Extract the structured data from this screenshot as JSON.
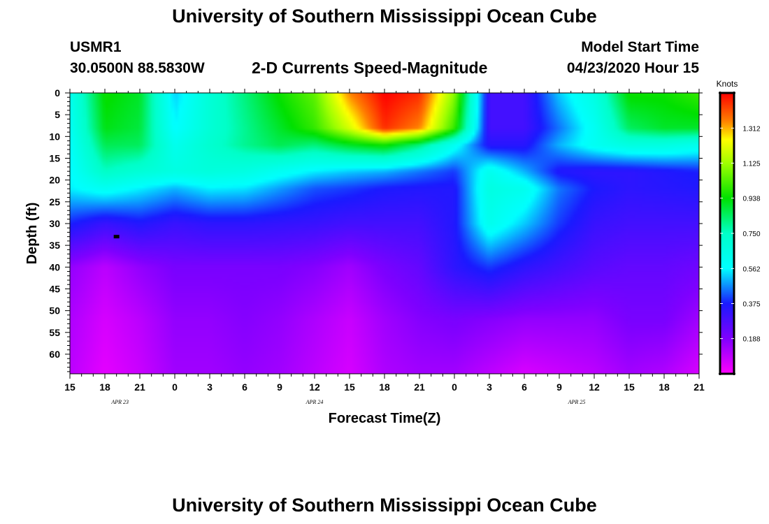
{
  "header": {
    "title": "University of Southern Mississippi Ocean Cube",
    "station": "USMR1",
    "coords": "30.0500N 88.5830W",
    "subtitle": "2-D Currents Speed-Magnitude",
    "model_start_label": "Model Start Time",
    "model_start_value": "04/23/2020 Hour 15"
  },
  "footer": {
    "title": "University of Southern Mississippi Ocean Cube"
  },
  "colors": {
    "magenta": "#ff00ff",
    "violet": "#8000ff",
    "blue": "#1a1aff",
    "cyan": "#00ffff",
    "green": "#00e000",
    "yellow": "#ffff00",
    "orange": "#ff8000",
    "red": "#ff0000"
  },
  "chart_data": {
    "type": "heatmap",
    "title": "2-D Currents Speed-Magnitude",
    "xlabel": "Forecast Time(Z)",
    "ylabel": "Depth (ft)",
    "x_ticks": [
      "15",
      "18",
      "21",
      "0",
      "3",
      "6",
      "9",
      "12",
      "15",
      "18",
      "21",
      "0",
      "3",
      "6",
      "9",
      "12",
      "15",
      "18",
      "21"
    ],
    "x_tick_hours": [
      0,
      3,
      6,
      9,
      12,
      15,
      18,
      21,
      24,
      27,
      30,
      33,
      36,
      39,
      42,
      45,
      48,
      51,
      54
    ],
    "date_labels": [
      {
        "text": "APR 23",
        "hour": 4.3
      },
      {
        "text": "APR 24",
        "hour": 21
      },
      {
        "text": "APR 25",
        "hour": 43.5
      }
    ],
    "y_ticks": [
      0,
      5,
      10,
      15,
      20,
      25,
      30,
      35,
      40,
      45,
      50,
      55,
      60
    ],
    "ylim": [
      0,
      64.5
    ],
    "xlim": [
      0,
      54
    ],
    "colorbar": {
      "label": "Knots",
      "ticks": [
        "1.312",
        "1.125",
        "0.938",
        "0.750",
        "0.562",
        "0.375",
        "0.188"
      ],
      "tick_values": [
        1.312,
        1.125,
        0.938,
        0.75,
        0.562,
        0.375,
        0.188
      ],
      "min": 0.0,
      "max": 1.5
    },
    "marker": {
      "hour": 4.0,
      "depth": 33
    },
    "depth_levels": [
      0,
      8,
      12,
      18,
      22,
      30,
      40,
      52,
      64
    ],
    "time_hours": [
      0,
      3,
      6,
      9,
      12,
      15,
      18,
      21,
      24,
      27,
      30,
      33,
      36,
      39,
      42,
      45,
      48,
      51,
      54
    ],
    "speed_knots": [
      [
        0.62,
        0.95,
        0.9,
        0.52,
        0.7,
        0.82,
        0.95,
        1.05,
        1.35,
        1.5,
        1.45,
        1.1,
        0.3,
        0.3,
        0.52,
        0.66,
        0.95,
        0.95,
        1.0
      ],
      [
        0.6,
        0.92,
        0.88,
        0.56,
        0.7,
        0.8,
        0.9,
        1.0,
        1.2,
        1.45,
        1.35,
        1.0,
        0.3,
        0.3,
        0.45,
        0.6,
        0.85,
        0.9,
        0.9
      ],
      [
        0.58,
        0.86,
        0.85,
        0.62,
        0.72,
        0.8,
        0.86,
        0.82,
        0.9,
        0.95,
        0.82,
        0.6,
        0.35,
        0.35,
        0.5,
        0.6,
        0.66,
        0.66,
        0.62
      ],
      [
        0.56,
        0.75,
        0.7,
        0.66,
        0.68,
        0.66,
        0.6,
        0.55,
        0.52,
        0.5,
        0.45,
        0.4,
        0.62,
        0.5,
        0.36,
        0.34,
        0.34,
        0.36,
        0.38
      ],
      [
        0.55,
        0.6,
        0.55,
        0.5,
        0.55,
        0.54,
        0.48,
        0.42,
        0.4,
        0.37,
        0.36,
        0.36,
        0.66,
        0.62,
        0.45,
        0.37,
        0.34,
        0.35,
        0.36
      ],
      [
        0.38,
        0.32,
        0.36,
        0.32,
        0.34,
        0.34,
        0.33,
        0.32,
        0.3,
        0.3,
        0.3,
        0.36,
        0.62,
        0.52,
        0.4,
        0.32,
        0.3,
        0.3,
        0.3
      ],
      [
        0.16,
        0.1,
        0.16,
        0.2,
        0.2,
        0.2,
        0.2,
        0.18,
        0.14,
        0.2,
        0.24,
        0.34,
        0.4,
        0.34,
        0.3,
        0.26,
        0.24,
        0.24,
        0.22
      ],
      [
        0.12,
        0.06,
        0.1,
        0.16,
        0.16,
        0.18,
        0.16,
        0.12,
        0.08,
        0.14,
        0.18,
        0.2,
        0.18,
        0.16,
        0.16,
        0.16,
        0.2,
        0.2,
        0.14
      ],
      [
        0.1,
        0.04,
        0.08,
        0.14,
        0.14,
        0.16,
        0.14,
        0.1,
        0.06,
        0.12,
        0.14,
        0.14,
        0.1,
        0.06,
        0.08,
        0.1,
        0.14,
        0.12,
        0.06
      ]
    ]
  }
}
